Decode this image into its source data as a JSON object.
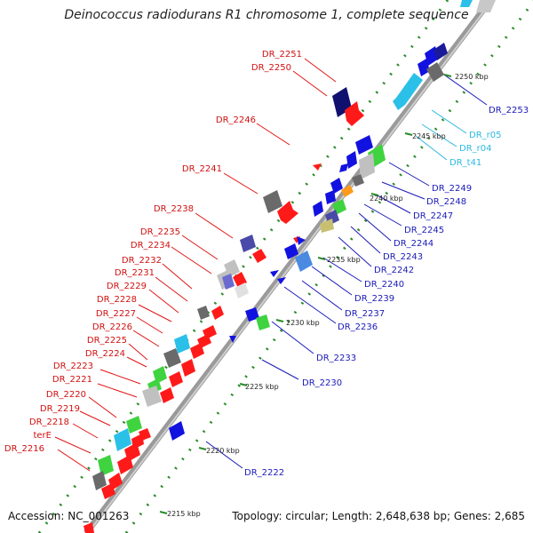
{
  "title": "Deinococcus radiodurans R1 chromosome 1, complete sequence",
  "footer": {
    "accession_label": "Accession: NC_001263",
    "summary": "Topology: circular; Length: 2,648,638 bp; Genes: 2,685"
  },
  "colors": {
    "forward_label": "#d01010",
    "reverse_label": "#1a1ab8",
    "rna_label": "#2bb8e0",
    "backbone": "#8a8a8a",
    "tick": "#2a8a2a"
  },
  "scale_ticks": [
    {
      "label": "2250 kbp"
    },
    {
      "label": "2245 kbp"
    },
    {
      "label": "2240 kbp"
    },
    {
      "label": "2235 kbp"
    },
    {
      "label": "2230 kbp"
    },
    {
      "label": "2225 kbp"
    },
    {
      "label": "2220 kbp"
    },
    {
      "label": "2215 kbp"
    }
  ],
  "forward_labels": [
    "DR_2251",
    "DR_2250",
    "DR_2246",
    "DR_2241",
    "DR_2238",
    "DR_2235",
    "DR_2234",
    "DR_2232",
    "DR_2231",
    "DR_2229",
    "DR_2228",
    "DR_2227",
    "DR_2226",
    "DR_2225",
    "DR_2224",
    "DR_2223",
    "DR_2221",
    "DR_2220",
    "DR_2219",
    "DR_2218",
    "terE",
    "DR_2216"
  ],
  "reverse_labels": [
    "DR_2253",
    "DR_2249",
    "DR_2248",
    "DR_2247",
    "DR_2245",
    "DR_2244",
    "DR_2243",
    "DR_2242",
    "DR_2240",
    "DR_2239",
    "DR_2237",
    "DR_2236",
    "DR_2233",
    "DR_2230",
    "DR_2222"
  ],
  "rna_labels": [
    "DR_r05",
    "DR_r04",
    "DR_t41"
  ]
}
